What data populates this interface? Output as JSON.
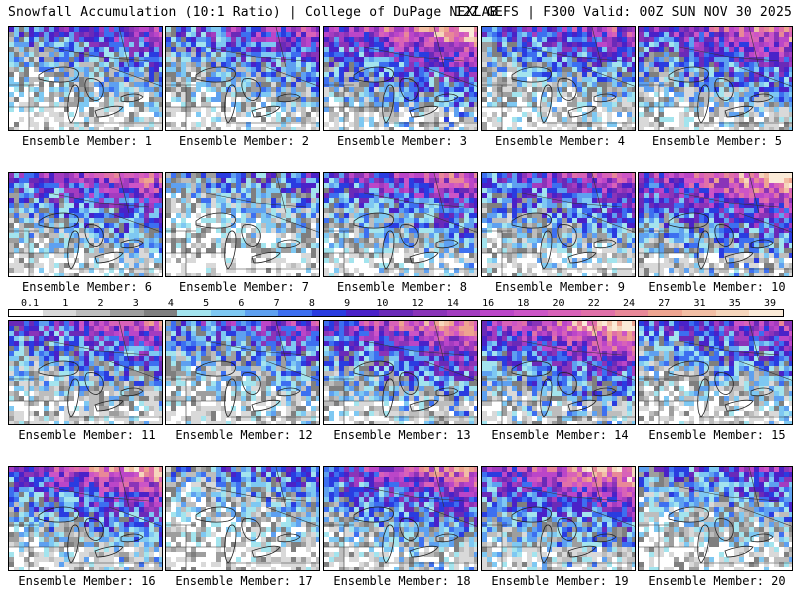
{
  "header": {
    "left": "Snowfall Accumulation (10:1 Ratio) | College of DuPage NEXLAB",
    "right": "12Z GEFS | F300 Valid: 00Z SUN NOV 30 2025"
  },
  "colorbar": {
    "ticks": [
      "0.1",
      "1",
      "2",
      "3",
      "4",
      "5",
      "6",
      "7",
      "8",
      "9",
      "10",
      "12",
      "14",
      "16",
      "18",
      "20",
      "22",
      "24",
      "27",
      "31",
      "35",
      "39"
    ],
    "colors": [
      "#ffffff",
      "#d9d9d9",
      "#bdbdbd",
      "#9e9e9e",
      "#7f7f7f",
      "#a3e4ee",
      "#7ec8f2",
      "#5ea0f0",
      "#3d6ff0",
      "#2a3ce0",
      "#4a22c8",
      "#6a2ab8",
      "#8a34b8",
      "#a33cc0",
      "#bb46c8",
      "#cc55c6",
      "#d862b8",
      "#e070a8",
      "#e88898",
      "#eea490",
      "#f2bea4",
      "#f6d6bc",
      "#fbebd8"
    ]
  },
  "panels": [
    {
      "label": "Ensemble Member: 1",
      "seed": 11,
      "intensity": 0.55
    },
    {
      "label": "Ensemble Member: 2",
      "seed": 22,
      "intensity": 0.6
    },
    {
      "label": "Ensemble Member: 3",
      "seed": 33,
      "intensity": 0.85
    },
    {
      "label": "Ensemble Member: 4",
      "seed": 44,
      "intensity": 0.6
    },
    {
      "label": "Ensemble Member: 5",
      "seed": 55,
      "intensity": 0.75
    },
    {
      "label": "Ensemble Member: 6",
      "seed": 66,
      "intensity": 0.7
    },
    {
      "label": "Ensemble Member: 7",
      "seed": 77,
      "intensity": 0.4
    },
    {
      "label": "Ensemble Member: 8",
      "seed": 88,
      "intensity": 0.7
    },
    {
      "label": "Ensemble Member: 9",
      "seed": 99,
      "intensity": 0.65
    },
    {
      "label": "Ensemble Member: 10",
      "seed": 110,
      "intensity": 0.9
    },
    {
      "label": "Ensemble Member: 11",
      "seed": 121,
      "intensity": 0.65
    },
    {
      "label": "Ensemble Member: 12",
      "seed": 132,
      "intensity": 0.55
    },
    {
      "label": "Ensemble Member: 13",
      "seed": 143,
      "intensity": 0.8
    },
    {
      "label": "Ensemble Member: 14",
      "seed": 154,
      "intensity": 0.9
    },
    {
      "label": "Ensemble Member: 15",
      "seed": 165,
      "intensity": 0.6
    },
    {
      "label": "Ensemble Member: 16",
      "seed": 176,
      "intensity": 0.8
    },
    {
      "label": "Ensemble Member: 17",
      "seed": 187,
      "intensity": 0.4
    },
    {
      "label": "Ensemble Member: 18",
      "seed": 198,
      "intensity": 0.75
    },
    {
      "label": "Ensemble Member: 19",
      "seed": 209,
      "intensity": 0.85
    },
    {
      "label": "Ensemble Member: 20",
      "seed": 220,
      "intensity": 0.5
    }
  ]
}
